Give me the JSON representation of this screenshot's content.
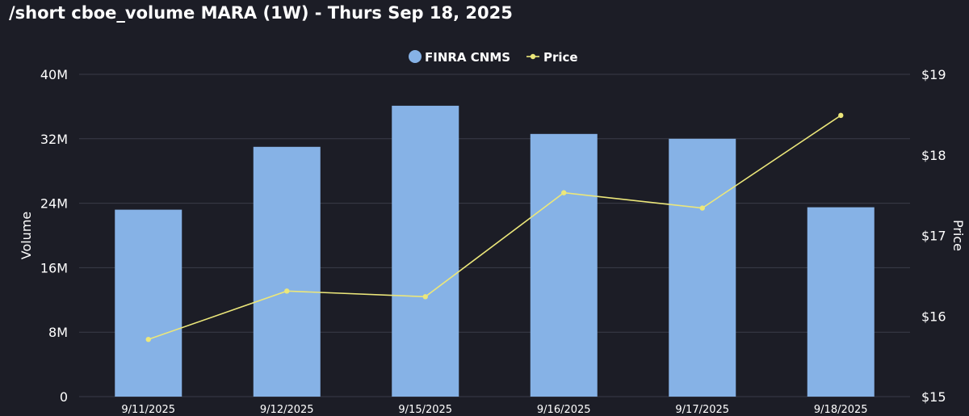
{
  "title": "/short cboe_volume MARA (1W) - Thurs Sep 18, 2025",
  "colors": {
    "background": "#1c1d26",
    "grid": "#3a3c48",
    "bar": "#86b2e6",
    "line": "#ece77a",
    "text": "#ffffff"
  },
  "chart_data": {
    "type": "bar",
    "categories": [
      "9/11/2025",
      "9/12/2025",
      "9/15/2025",
      "9/16/2025",
      "9/17/2025",
      "9/18/2025"
    ],
    "series": [
      {
        "name": "FINRA CNMS",
        "type": "bar",
        "axis": "left",
        "values": [
          23200000,
          31000000,
          36100000,
          32600000,
          32000000,
          23500000
        ]
      },
      {
        "name": "Price",
        "type": "line",
        "axis": "right",
        "values": [
          15.71,
          16.31,
          16.24,
          17.53,
          17.34,
          18.49
        ]
      }
    ],
    "ylabel": "Volume",
    "y2label": "Price",
    "ylim": [
      0,
      40000000
    ],
    "y2lim": [
      15,
      19
    ],
    "yticks": [
      "0",
      "8M",
      "16M",
      "24M",
      "32M",
      "40M"
    ],
    "y2ticks": [
      "$15",
      "$16",
      "$17",
      "$18",
      "$19"
    ],
    "grid": true,
    "legend": "top-center"
  }
}
